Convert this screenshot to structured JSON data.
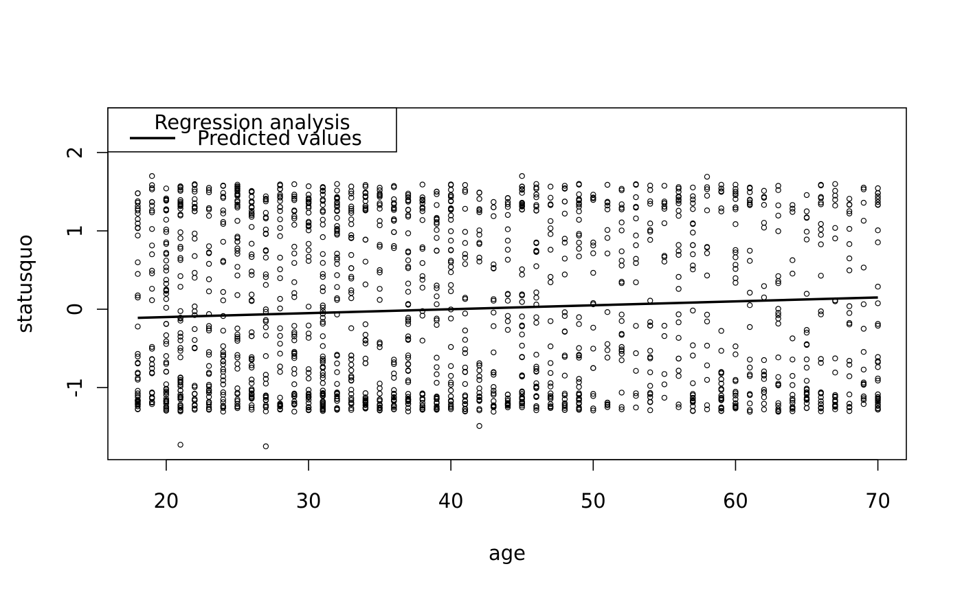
{
  "chart_data": {
    "type": "scatter",
    "title": "",
    "xlabel": "age",
    "ylabel": "statusquo",
    "xlim": [
      15.9,
      72.0
    ],
    "ylim": [
      -1.92,
      2.57
    ],
    "x_ticks": [
      20,
      30,
      40,
      50,
      60,
      70
    ],
    "y_ticks": [
      -1,
      0,
      1,
      2
    ],
    "x_tick_labels": [
      "20",
      "30",
      "40",
      "50",
      "60",
      "70"
    ],
    "y_tick_labels": [
      "-1",
      "0",
      "1",
      "2"
    ],
    "grid": false,
    "legend": {
      "position": "top-left",
      "title": "Regression analysis",
      "entries": [
        {
          "label": "Predicted values",
          "style": "solid-line"
        }
      ]
    },
    "x_range": [
      18,
      70
    ],
    "scatter_y_range": [
      -1.31,
      1.6
    ],
    "outliers": [
      [
        19,
        1.7
      ],
      [
        21,
        -1.73
      ],
      [
        27,
        -1.75
      ],
      [
        42,
        -1.49
      ],
      [
        45,
        1.7
      ],
      [
        58,
        1.69
      ]
    ],
    "series": [
      {
        "name": "Predicted values",
        "type": "line",
        "x": [
          18,
          70
        ],
        "y": [
          -0.11,
          0.15
        ]
      }
    ]
  }
}
